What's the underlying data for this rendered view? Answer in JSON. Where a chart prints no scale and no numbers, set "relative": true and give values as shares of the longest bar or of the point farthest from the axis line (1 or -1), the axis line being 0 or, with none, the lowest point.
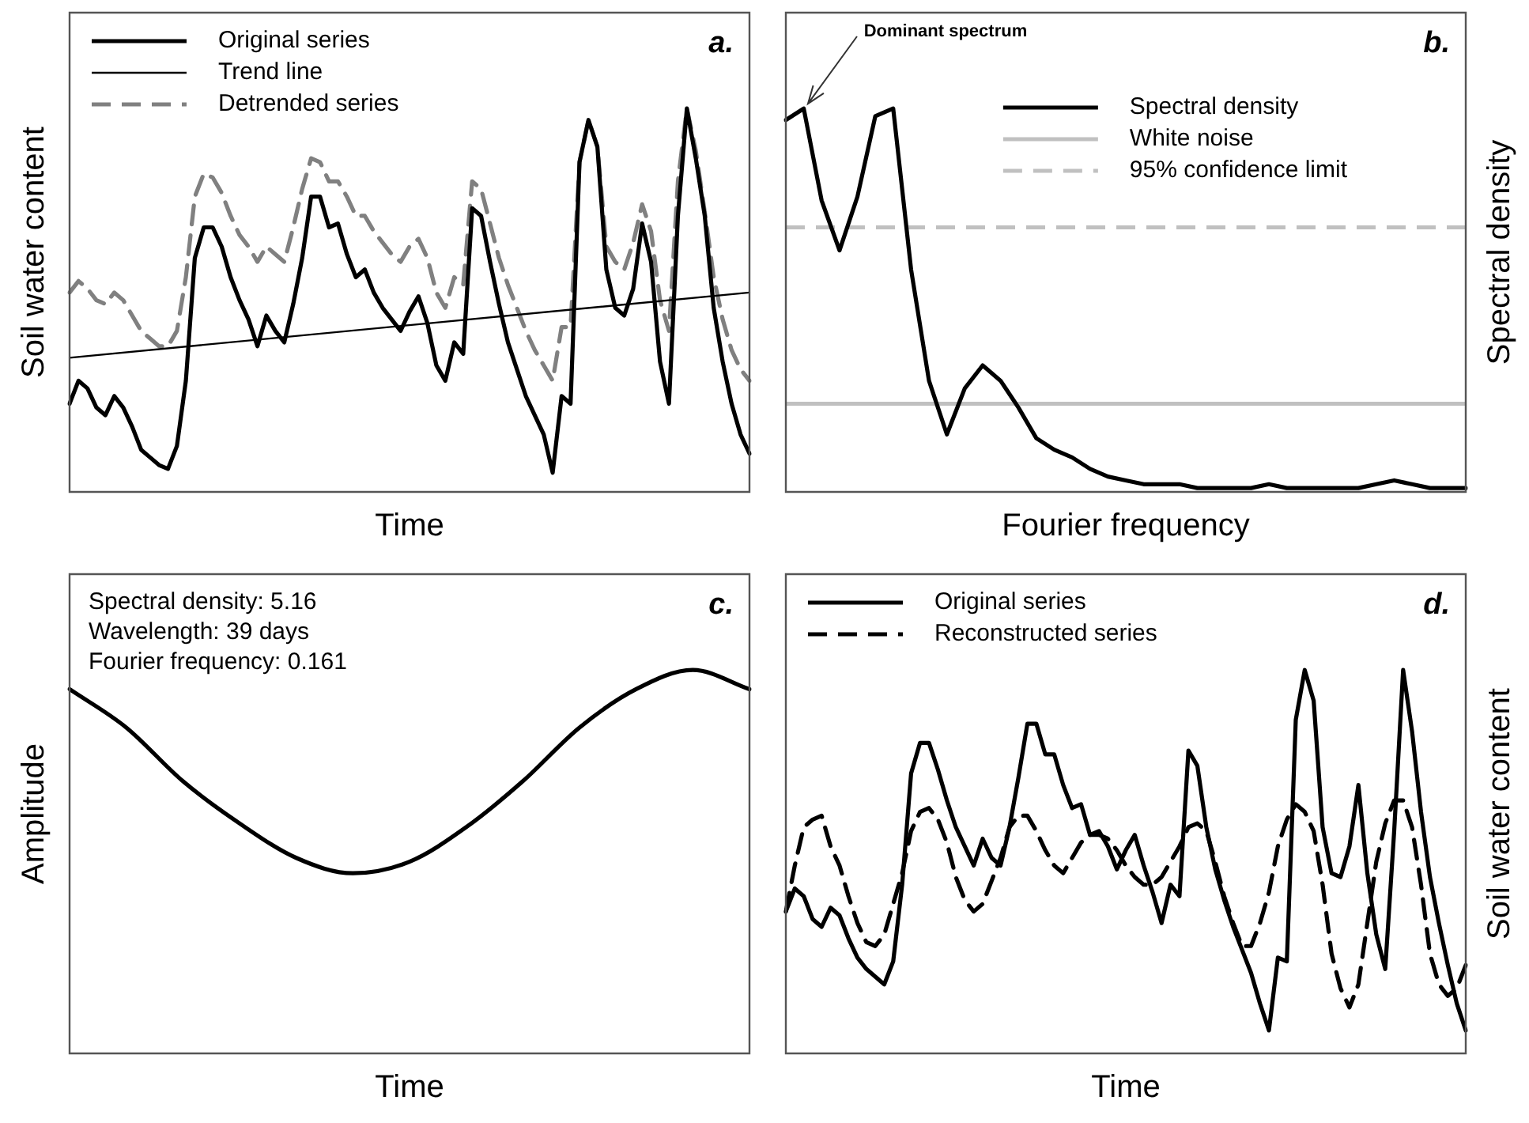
{
  "chart_data": [
    {
      "type": "line",
      "relative": true,
      "xlabel": "Time",
      "ylabel": "Soil water content",
      "legend": "top left",
      "annotations": [
        "a."
      ],
      "categories": [
        null,
        null,
        null,
        null,
        null,
        null,
        null,
        null,
        null,
        null,
        null,
        null,
        null,
        null,
        null,
        null,
        null,
        null,
        null,
        null,
        null,
        null,
        null,
        null,
        null,
        null,
        null,
        null,
        null,
        null,
        null,
        null,
        null,
        null,
        null,
        null,
        null,
        null,
        null,
        null,
        null,
        null,
        null,
        null,
        null,
        null,
        null,
        null,
        null,
        null,
        null,
        null,
        null,
        null,
        null,
        null,
        null,
        null,
        null,
        null,
        null,
        null,
        null,
        null,
        null,
        null,
        null,
        null,
        null,
        null,
        null,
        null,
        null,
        null,
        null,
        null,
        null
      ],
      "series": [
        {
          "name": "Original series",
          "color": "#000000",
          "line_style": "solid",
          "values": [
            0.23,
            0.29,
            0.27,
            0.22,
            0.2,
            0.25,
            0.22,
            0.17,
            0.11,
            0.09,
            0.07,
            0.06,
            0.12,
            0.29,
            0.61,
            0.69,
            0.69,
            0.64,
            0.56,
            0.5,
            0.45,
            0.38,
            0.46,
            0.42,
            0.39,
            0.49,
            0.61,
            0.77,
            0.77,
            0.69,
            0.7,
            0.62,
            0.56,
            0.58,
            0.52,
            0.48,
            0.45,
            0.42,
            0.47,
            0.51,
            0.44,
            0.33,
            0.29,
            0.39,
            0.36,
            0.74,
            0.72,
            0.6,
            0.49,
            0.39,
            0.32,
            0.25,
            0.2,
            0.15,
            0.05,
            0.25,
            0.23,
            0.86,
            0.97,
            0.9,
            0.58,
            0.48,
            0.46,
            0.53,
            0.7,
            0.6,
            0.34,
            0.23,
            0.72,
            1,
            0.87,
            0.72,
            0.48,
            0.34,
            0.23,
            0.15,
            0.1
          ]
        },
        {
          "name": "Trend line",
          "color": "#000000",
          "line_style": "solid",
          "values": [
            0.35,
            null,
            null,
            null,
            null,
            null,
            null,
            null,
            null,
            null,
            null,
            null,
            null,
            null,
            null,
            null,
            null,
            null,
            null,
            null,
            null,
            null,
            null,
            null,
            null,
            null,
            null,
            null,
            null,
            null,
            null,
            null,
            null,
            null,
            null,
            null,
            null,
            null,
            null,
            null,
            null,
            null,
            null,
            null,
            null,
            null,
            null,
            null,
            null,
            null,
            null,
            null,
            null,
            null,
            null,
            null,
            null,
            null,
            null,
            null,
            null,
            null,
            null,
            null,
            null,
            null,
            null,
            null,
            null,
            null,
            null,
            null,
            null,
            null,
            null,
            null,
            0.52
          ]
        },
        {
          "name": "Detrended series",
          "color": "#808080",
          "line_style": "dashed",
          "values": [
            0.52,
            0.55,
            0.53,
            0.5,
            0.49,
            0.52,
            0.5,
            0.46,
            0.42,
            0.4,
            0.38,
            0.38,
            0.42,
            0.56,
            0.77,
            0.83,
            0.82,
            0.78,
            0.72,
            0.67,
            0.64,
            0.6,
            0.64,
            0.62,
            0.6,
            0.69,
            0.79,
            0.87,
            0.86,
            0.81,
            0.81,
            0.77,
            0.72,
            0.72,
            0.68,
            0.65,
            0.62,
            0.6,
            0.64,
            0.66,
            0.61,
            0.52,
            0.48,
            0.56,
            0.54,
            0.81,
            0.79,
            0.7,
            0.61,
            0.54,
            0.48,
            0.42,
            0.37,
            0.33,
            0.29,
            0.43,
            0.43,
            0.86,
            0.97,
            0.9,
            0.64,
            0.6,
            0.58,
            0.65,
            0.75,
            0.68,
            0.5,
            0.42,
            0.81,
            1,
            0.89,
            0.73,
            0.56,
            0.45,
            0.37,
            0.32,
            0.29
          ]
        }
      ]
    },
    {
      "type": "line",
      "relative": true,
      "xlabel": "Fourier frequency",
      "ylabel": "Spectral density",
      "legend": "top right",
      "annotations": [
        "Dominant spectrum",
        "b."
      ],
      "categories": [
        null,
        null,
        null,
        null,
        null,
        null,
        null,
        null,
        null,
        null,
        null,
        null,
        null,
        null,
        null,
        null,
        null,
        null,
        null,
        null,
        null,
        null,
        null,
        null,
        null,
        null,
        null,
        null,
        null,
        null,
        null,
        null,
        null,
        null,
        null,
        null,
        null,
        null,
        null
      ],
      "series": [
        {
          "name": "Spectral density",
          "color": "#000000",
          "line_style": "solid",
          "values": [
            0.97,
            1,
            0.76,
            0.63,
            0.77,
            0.98,
            1,
            0.58,
            0.29,
            0.15,
            0.27,
            0.33,
            0.29,
            0.22,
            0.14,
            0.11,
            0.09,
            0.06,
            0.04,
            0.03,
            0.02,
            0.02,
            0.02,
            0.01,
            0.01,
            0.01,
            0.01,
            0.02,
            0.01,
            0.01,
            0.01,
            0.01,
            0.01,
            0.02,
            0.03,
            0.02,
            0.01,
            0.01,
            0.01
          ]
        }
      ],
      "ref_lines": [
        {
          "axis": "y",
          "value": 0.23,
          "label": "White noise",
          "color": "#c0c0c0",
          "line_style": "solid"
        },
        {
          "axis": "y",
          "value": 0.69,
          "label": "95% confidence limit",
          "color": "#c0c0c0",
          "line_style": "dashed"
        }
      ]
    },
    {
      "type": "line",
      "relative": true,
      "xlabel": "Time",
      "ylabel": "Amplitude",
      "annotations": [
        "Spectral density: 5.16",
        "Wavelength: 39 days",
        "Fourier frequency: 0.161",
        "c."
      ],
      "categories": [
        null,
        null,
        null,
        null,
        null,
        null,
        null,
        null,
        null,
        null,
        null,
        null,
        null
      ],
      "series": [
        {
          "color": "#000000",
          "line_style": "solid",
          "values": [
            0.95,
            0.85,
            0.71,
            0.6,
            0.51,
            0.47,
            0.5,
            0.59,
            0.71,
            0.85,
            0.95,
            1,
            0.95
          ]
        }
      ]
    },
    {
      "type": "line",
      "relative": true,
      "xlabel": "Time",
      "ylabel": "Soil water content",
      "legend": "top left",
      "annotations": [
        "d."
      ],
      "categories": [
        null,
        null,
        null,
        null,
        null,
        null,
        null,
        null,
        null,
        null,
        null,
        null,
        null,
        null,
        null,
        null,
        null,
        null,
        null,
        null,
        null,
        null,
        null,
        null,
        null,
        null,
        null,
        null,
        null,
        null,
        null,
        null,
        null,
        null,
        null,
        null,
        null,
        null,
        null,
        null,
        null,
        null,
        null,
        null,
        null,
        null,
        null,
        null,
        null,
        null,
        null,
        null,
        null,
        null,
        null,
        null,
        null,
        null,
        null,
        null,
        null,
        null,
        null,
        null,
        null,
        null,
        null,
        null,
        null,
        null,
        null,
        null,
        null,
        null,
        null,
        null,
        null
      ],
      "series": [
        {
          "name": "Original series",
          "color": "#000000",
          "line_style": "solid",
          "values": [
            0.37,
            0.43,
            0.41,
            0.35,
            0.33,
            0.38,
            0.36,
            0.3,
            0.25,
            0.22,
            0.2,
            0.18,
            0.24,
            0.44,
            0.73,
            0.81,
            0.81,
            0.74,
            0.66,
            0.59,
            0.54,
            0.49,
            0.56,
            0.51,
            0.49,
            0.59,
            0.72,
            0.86,
            0.86,
            0.78,
            0.78,
            0.7,
            0.64,
            0.65,
            0.57,
            0.58,
            0.54,
            0.48,
            0.53,
            0.57,
            0.49,
            0.42,
            0.34,
            0.44,
            0.41,
            0.79,
            0.75,
            0.59,
            0.48,
            0.4,
            0.33,
            0.27,
            0.21,
            0.13,
            0.06,
            0.25,
            0.24,
            0.87,
            1,
            0.92,
            0.59,
            0.47,
            0.46,
            0.54,
            0.7,
            0.47,
            0.31,
            0.22,
            0.58,
            1,
            0.84,
            0.63,
            0.46,
            0.34,
            0.23,
            0.13,
            0.06
          ]
        },
        {
          "name": "Reconstructed series",
          "color": "#000000",
          "line_style": "dashed",
          "values": [
            0.37,
            0.49,
            0.59,
            0.61,
            0.62,
            0.54,
            0.49,
            0.41,
            0.34,
            0.29,
            0.28,
            0.31,
            0.39,
            0.47,
            0.58,
            0.63,
            0.64,
            0.61,
            0.55,
            0.46,
            0.4,
            0.37,
            0.39,
            0.45,
            0.51,
            0.59,
            0.62,
            0.62,
            0.58,
            0.53,
            0.49,
            0.47,
            0.51,
            0.55,
            0.57,
            0.57,
            0.56,
            0.53,
            0.49,
            0.46,
            0.44,
            0.44,
            0.46,
            0.5,
            0.54,
            0.59,
            0.6,
            0.58,
            0.5,
            0.41,
            0.34,
            0.28,
            0.28,
            0.34,
            0.42,
            0.54,
            0.61,
            0.65,
            0.63,
            0.58,
            0.44,
            0.26,
            0.17,
            0.12,
            0.18,
            0.34,
            0.5,
            0.6,
            0.66,
            0.66,
            0.59,
            0.44,
            0.26,
            0.18,
            0.15,
            0.17,
            0.23
          ]
        }
      ]
    }
  ]
}
